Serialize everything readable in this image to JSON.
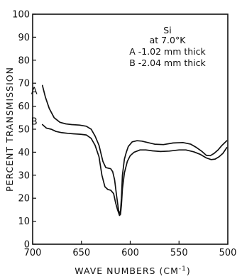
{
  "chart_data": {
    "type": "line",
    "title": "",
    "xlabel": "WAVE NUMBERS (CM",
    "xlabel_superscript": "-1",
    "xlabel_suffix": ")",
    "ylabel": "PERCENT TRANSMISSION",
    "xlim": [
      700,
      500
    ],
    "ylim": [
      0,
      100
    ],
    "x_reversed": true,
    "x_ticks": [
      700,
      650,
      600,
      550,
      500
    ],
    "y_ticks": [
      0,
      10,
      20,
      30,
      40,
      50,
      60,
      70,
      80,
      90,
      100
    ],
    "grid": false,
    "legend": "none",
    "annotations": [
      "Si",
      "at 7.0°K",
      "A -1.02 mm thick",
      "B -2.04 mm thick"
    ],
    "series": [
      {
        "name": "A",
        "color": "#111111",
        "x": [
          690,
          687,
          683,
          678,
          672,
          666,
          660,
          652,
          645,
          640,
          636,
          632,
          628,
          625,
          622,
          620,
          618,
          616,
          614,
          612,
          611,
          610,
          609,
          608,
          606,
          604,
          602,
          598,
          593,
          588,
          582,
          575,
          566,
          556,
          546,
          538,
          532,
          527,
          522,
          518,
          514,
          510,
          506,
          501
        ],
        "y": [
          69,
          64,
          59,
          55,
          53,
          52.3,
          52,
          51.8,
          51.3,
          50,
          47,
          43,
          36,
          33.3,
          33,
          32.8,
          31.5,
          28,
          21,
          15,
          13,
          14.5,
          20,
          30,
          37,
          40,
          42.5,
          44.5,
          45,
          44.8,
          44.2,
          43.5,
          43.3,
          44,
          44.2,
          43.5,
          42,
          40.5,
          38.6,
          38.5,
          39.5,
          41,
          43,
          45
        ]
      },
      {
        "name": "B",
        "color": "#111111",
        "x": [
          690,
          686,
          681,
          676,
          670,
          664,
          658,
          651,
          645,
          640,
          636,
          632,
          629,
          626,
          623,
          620,
          617,
          615,
          613,
          611,
          610,
          609,
          608,
          606,
          603,
          600,
          596,
          590,
          584,
          577,
          569,
          560,
          550,
          543,
          535,
          528,
          522,
          517,
          513,
          509,
          505,
          501
        ],
        "y": [
          52,
          50.5,
          50,
          49,
          48.5,
          48.2,
          48,
          47.8,
          47.5,
          46,
          43,
          38,
          30,
          25,
          23.8,
          23.5,
          22,
          18,
          15,
          12.5,
          13,
          17,
          24,
          31,
          36,
          38.5,
          40,
          41,
          41,
          40.6,
          40.3,
          40.5,
          41,
          41,
          40.2,
          39,
          37.5,
          36.8,
          37,
          38,
          39.5,
          42
        ]
      }
    ]
  }
}
